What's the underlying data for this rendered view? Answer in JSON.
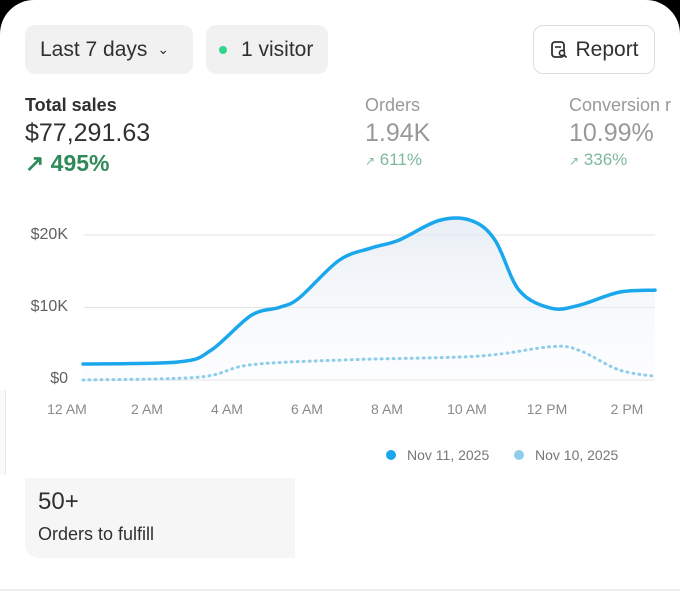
{
  "header": {
    "date_range": "Last 7 days",
    "visitors": "1 visitor",
    "report_label": "Report"
  },
  "metrics": [
    {
      "label": "Total sales",
      "value": "$77,291.63",
      "change": "495%"
    },
    {
      "label": "Orders",
      "value": "1.94K",
      "change": "611%"
    },
    {
      "label": "Conversion r",
      "value": "10.99%",
      "change": "336%"
    }
  ],
  "chart_data": {
    "type": "area",
    "y_ticks": [
      "$0",
      "$10K",
      "$20K"
    ],
    "ylim": [
      0,
      20000
    ],
    "x_ticks": [
      "12 AM",
      "2 AM",
      "4 AM",
      "6 AM",
      "8 AM",
      "10 AM",
      "12 PM",
      "2 PM"
    ],
    "grid": true,
    "legend_position": "bottom-right",
    "series": [
      {
        "name": "Nov 11, 2025",
        "color": "#1aa7ec",
        "style": "solid",
        "x": [
          0.4,
          2.8,
          3.6,
          4.6,
          5.3,
          5.8,
          6.8,
          7.6,
          8.3,
          9.3,
          10.1,
          10.7,
          11.3,
          12.1,
          12.8,
          13.8,
          14.7
        ],
        "y": [
          2200,
          2500,
          4100,
          8900,
          10000,
          11300,
          16500,
          18200,
          19300,
          22000,
          22000,
          19300,
          12400,
          9900,
          10300,
          12100,
          12400
        ]
      },
      {
        "name": "Nov 10, 2025",
        "color": "#8fcdea",
        "style": "dotted",
        "x": [
          0.4,
          3.3,
          4.6,
          7.1,
          10.3,
          12.1,
          12.8,
          13.8,
          14.7
        ],
        "y": [
          0,
          400,
          2100,
          2800,
          3300,
          4600,
          4100,
          1400,
          500
        ]
      }
    ]
  },
  "fulfill": {
    "count": "50+",
    "label": "Orders to fulfill"
  }
}
